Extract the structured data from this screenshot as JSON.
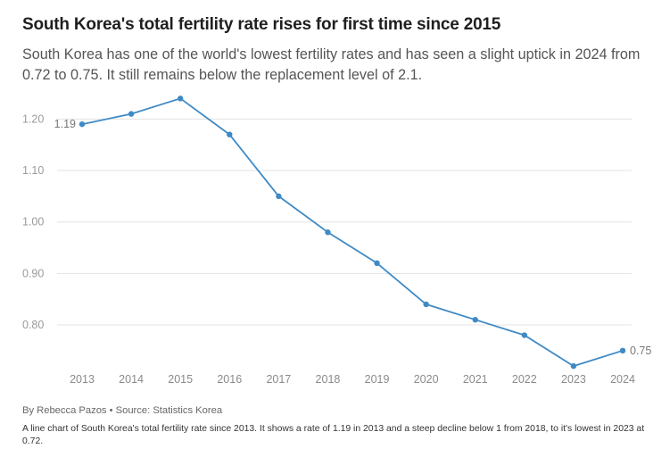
{
  "header": {
    "title": "South Korea's total fertility rate rises for first time since 2015",
    "subtitle": "South Korea has one of the world's lowest fertility rates and has seen a slight uptick in 2024 from 0.72 to 0.75. It still remains below the replacement level of 2.1."
  },
  "footer": {
    "byline": "By Rebecca Pazos • Source: Statistics Korea",
    "description": "A line chart of South Korea's total fertility rate since 2013. It shows a rate of 1.19 in 2013 and a steep decline below 1 from 2018, to it's lowest in 2023 at 0.72."
  },
  "chart_data": {
    "type": "line",
    "x": [
      2013,
      2014,
      2015,
      2016,
      2017,
      2018,
      2019,
      2020,
      2021,
      2022,
      2023,
      2024
    ],
    "series": [
      {
        "values": [
          1.19,
          1.21,
          1.24,
          1.17,
          1.05,
          0.98,
          0.92,
          0.84,
          0.81,
          0.78,
          0.72,
          0.75
        ]
      }
    ],
    "y_ticks": [
      "0.80",
      "0.90",
      "1.00",
      "1.10",
      "1.20"
    ],
    "y_tick_values": [
      0.8,
      0.9,
      1.0,
      1.1,
      1.2
    ],
    "ylim": [
      0.72,
      1.24
    ],
    "data_labels": [
      {
        "x": 2013,
        "text": "1.19",
        "position": "left"
      },
      {
        "x": 2024,
        "text": "0.75",
        "position": "right"
      }
    ],
    "grid": true,
    "line_color": "#3f8ac5",
    "grid_color": "#e3e3e3"
  }
}
